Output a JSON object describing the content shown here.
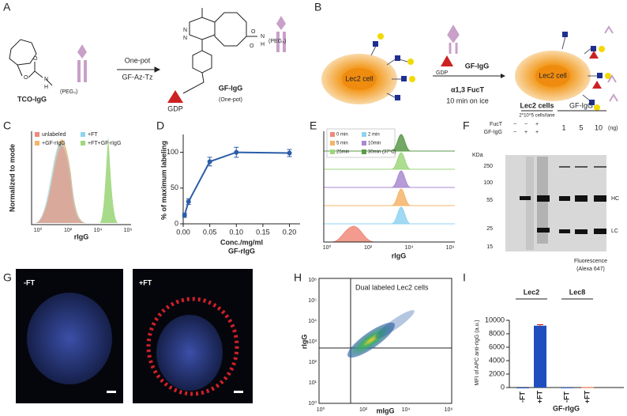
{
  "panel_letters": [
    "A",
    "B",
    "C",
    "D",
    "E",
    "F",
    "G",
    "H",
    "I"
  ],
  "scheme_a": {
    "reagent": "TCO-IgG",
    "peg": "(PEG₄)",
    "step": "One-pot",
    "step_reagent": "GF-Az-Tz",
    "product": "GF-IgG",
    "product_note": "(One-pot)",
    "gdp": "GDP",
    "peg_product": "(PEG₄)",
    "atoms": [
      "O",
      "O",
      "N",
      "H",
      "N",
      "N",
      "O",
      "O",
      "N",
      "H"
    ]
  },
  "scheme_b": {
    "cell_before": "Lec2 cell",
    "cell_after": "Lec2 cell",
    "gdp": "GDP",
    "reagent": "GF-IgG",
    "enzyme": "α1,3 FucT",
    "condition": "10 min on ice"
  },
  "panel_c": {
    "legend": [
      "unlabeled",
      "+FT",
      "+GF-rIgG",
      "+FT+GF-rIgG"
    ],
    "colors": [
      "#f08a7a",
      "#8fd3f0",
      "#f5b46a",
      "#9ed77c"
    ],
    "ylabel": "Normalized to mode",
    "xlabel": "rIgG",
    "xticks": [
      "10⁰",
      "10²",
      "10⁴",
      "10⁶"
    ]
  },
  "panel_e": {
    "legend": [
      "0 min",
      "2 min",
      "5 min",
      "10min",
      "25min",
      "30min (37°C)"
    ],
    "colors": [
      "#f08a7a",
      "#8fd3f0",
      "#f5b46a",
      "#a98ad0",
      "#9ed77c",
      "#5b9a4a"
    ],
    "xlabel": "rIgG",
    "xticks": [
      "10⁰",
      "10²",
      "10⁴",
      "10⁶"
    ]
  },
  "panel_f": {
    "group_a": "Lec2 cells",
    "group_a_note": "2*10^5 cells/lane",
    "group_b": "GF-IgG",
    "row_labels": [
      "FucT",
      "GF-IgG"
    ],
    "fuct_signs": [
      "−",
      "−",
      "+"
    ],
    "gf_signs": [
      "−",
      "+",
      "+"
    ],
    "amounts": [
      "1",
      "5",
      "10"
    ],
    "unit": "(ng)",
    "kda": "KDa",
    "markers": [
      "250",
      "100",
      "55",
      "25",
      "15"
    ],
    "bands": [
      "HC",
      "LC"
    ],
    "caption": "Fluorescence",
    "caption2": "(Alexa 647)"
  },
  "panel_g": {
    "left": "-FT",
    "right": "+FT"
  },
  "panel_h": {
    "title": "Dual labeled Lec2 cells",
    "xlabel": "mIgG",
    "ylabel": "rIgG",
    "xticks": [
      "10⁰",
      "10²",
      "10⁴",
      "10⁶"
    ],
    "yticks": [
      "10⁰",
      "10¹",
      "10²",
      "10³",
      "10⁴",
      "10⁵",
      "10⁶"
    ]
  },
  "chart_data": [
    {
      "type": "line",
      "xlabel": "Conc./mg/ml",
      "xlabel2": "GF-rIgG",
      "ylabel": "% of maximum labeling",
      "x": [
        0.0025,
        0.01,
        0.05,
        0.1,
        0.2
      ],
      "values": [
        12,
        31,
        87,
        100,
        99
      ],
      "errors": [
        3,
        4,
        6,
        7,
        5
      ],
      "color": "#2b5ca8",
      "xlim": [
        0,
        0.22
      ],
      "ylim": [
        0,
        125
      ],
      "xticks": [
        {
          "value": 0,
          "label": "0.00"
        },
        {
          "value": 0.05,
          "label": "0.05"
        },
        {
          "value": 0.1,
          "label": "0.10"
        },
        {
          "value": 0.15,
          "label": "0.15"
        },
        {
          "value": 0.2,
          "label": "0.20"
        }
      ],
      "yticks": [
        0,
        50,
        100
      ]
    },
    {
      "type": "bar",
      "ylabel": "MFI of APC anti-rIgG (a.u.)",
      "xlabel": "GF-rIgG",
      "groups": [
        "Lec2",
        "Lec8"
      ],
      "categories": [
        "-FT",
        "+FT",
        "-FT",
        "+FT"
      ],
      "values": [
        0,
        9200,
        20,
        60
      ],
      "errors": [
        0,
        150,
        0,
        0
      ],
      "colors": [
        "#1f4fbf",
        "#1f4fbf",
        "#1f4fbf",
        "#e05a2b"
      ],
      "ylim": [
        0,
        10000
      ],
      "yticks": [
        0,
        2000,
        4000,
        6000,
        8000,
        10000
      ]
    }
  ]
}
